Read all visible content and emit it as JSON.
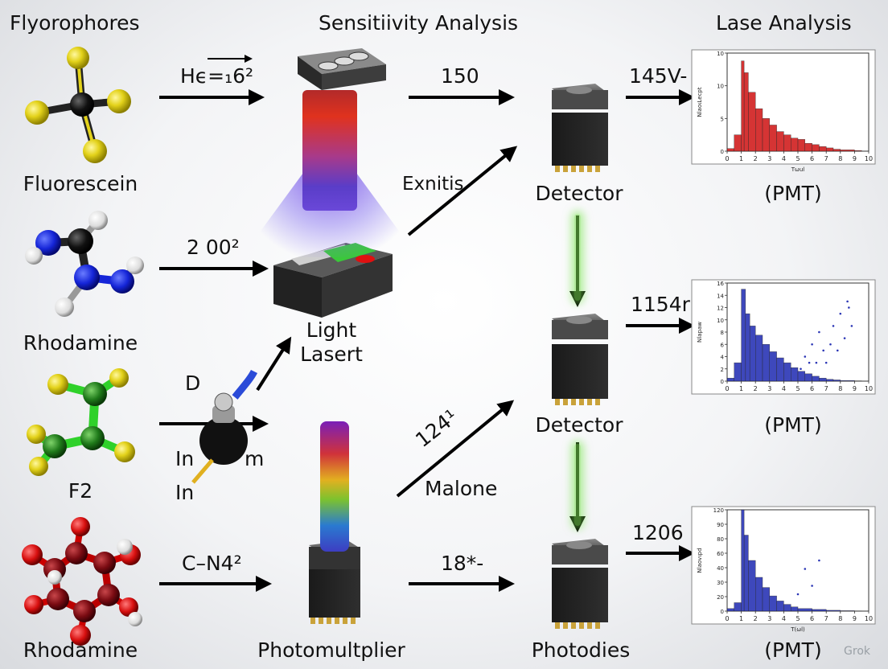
{
  "headers": {
    "left": "Flyorophores",
    "center": "Sensitiivity Analysis",
    "right": "Lase  Analysis"
  },
  "fluorophores": [
    {
      "label": "Fluorescein"
    },
    {
      "label": "Rhodamine"
    },
    {
      "label": "F2"
    },
    {
      "label": "Rhodamine"
    }
  ],
  "arrow_labels": {
    "row1": "Hϵ=₁6²",
    "row2": "2 00²",
    "row3_d": "D",
    "row3_in1": "In",
    "row3_m": "m",
    "row3_in2": "In",
    "row4": "C–N4²",
    "to_det1": "150",
    "exnitis": "Exnitis",
    "diag_124": "124¹",
    "malone": "Malone",
    "to_photodiode": "18*-",
    "out1": "145V-",
    "out2": "1154r",
    "out3": "1206"
  },
  "devices": {
    "laser": "Light\nLasert",
    "photomultiplier": "Photomultplier",
    "detector1": "Detector",
    "detector2": "Detector",
    "photodiode": "Photodies"
  },
  "plots": [
    {
      "caption": "(PMT)",
      "color": "#d11f1f",
      "xlabel": "Tωul",
      "ylabel": "NlaoιLecpt"
    },
    {
      "caption": "(PMT)",
      "color": "#2a35b5",
      "xlabel": "",
      "ylabel": "Nlapaw"
    },
    {
      "caption": "(PMT)",
      "color": "#2a35b5",
      "xlabel": "T(ωl)",
      "ylabel": "Nlaovιpd"
    }
  ],
  "watermark": "Grok",
  "chart_data": [
    {
      "type": "bar",
      "x": [
        0,
        0.5,
        1,
        1.2,
        1.5,
        2,
        2.5,
        3,
        3.5,
        4,
        4.5,
        5,
        5.5,
        6,
        6.5,
        7,
        7.5,
        8,
        9
      ],
      "values": [
        0.4,
        2.5,
        13.8,
        12,
        9,
        6.5,
        5,
        4,
        3,
        2.5,
        2,
        1.8,
        1.2,
        1,
        0.7,
        0.5,
        0.3,
        0.2,
        0.1
      ],
      "xlim": [
        0,
        10
      ],
      "ylim": [
        0,
        15
      ],
      "xticks": [
        "0",
        "1",
        "2",
        "3",
        "4",
        "5",
        "6",
        "7",
        "8",
        "9",
        "10"
      ],
      "yticks": [
        "0",
        "5",
        "10",
        "10"
      ]
    },
    {
      "type": "bar",
      "x": [
        0,
        0.5,
        1,
        1.3,
        1.6,
        2,
        2.5,
        3,
        3.5,
        4,
        4.5,
        5,
        5.5,
        6,
        6.5,
        7,
        7.5,
        8,
        9
      ],
      "values": [
        0.5,
        3,
        15,
        11,
        9,
        7.5,
        6,
        4.8,
        3.8,
        3,
        2.2,
        1.6,
        1.2,
        0.8,
        0.5,
        0.3,
        0.2,
        0.1,
        0.05
      ],
      "xlim": [
        0,
        10
      ],
      "ylim": [
        0,
        16
      ],
      "xticks": [
        "0",
        "1",
        "2",
        "3",
        "4",
        "5",
        "6",
        "7",
        "8",
        "9",
        "10"
      ],
      "yticks": [
        "0",
        "2",
        "4",
        "6",
        "8",
        "10",
        "12",
        "14",
        "16"
      ],
      "scatter": [
        [
          5.5,
          4
        ],
        [
          6,
          6
        ],
        [
          6.5,
          8
        ],
        [
          7,
          3
        ],
        [
          7.5,
          9
        ],
        [
          8,
          11
        ],
        [
          8.5,
          13
        ],
        [
          7.8,
          5
        ],
        [
          6.8,
          5
        ],
        [
          5.8,
          3
        ],
        [
          8.3,
          7
        ],
        [
          8.8,
          9
        ],
        [
          6.3,
          3
        ],
        [
          7.3,
          6
        ],
        [
          8.6,
          12
        ],
        [
          5.2,
          2
        ]
      ]
    },
    {
      "type": "bar",
      "x": [
        0,
        0.5,
        1,
        1.2,
        1.5,
        2,
        2.5,
        3,
        3.5,
        4,
        4.5,
        5,
        6,
        7,
        8,
        9
      ],
      "values": [
        3,
        10,
        120,
        90,
        60,
        40,
        28,
        18,
        12,
        8,
        5,
        3,
        2,
        1,
        0.5,
        0.2
      ],
      "xlim": [
        0,
        10
      ],
      "ylim": [
        0,
        120
      ],
      "xticks": [
        "0",
        "1",
        "2",
        "3",
        "4",
        "5",
        "6",
        "7",
        "8",
        "9",
        "10"
      ],
      "yticks": [
        "0",
        "20",
        "30",
        "40",
        "60",
        "80",
        "90",
        "120"
      ],
      "scatter": [
        [
          5.5,
          50
        ],
        [
          6.5,
          60
        ],
        [
          6,
          30
        ],
        [
          5,
          20
        ]
      ]
    }
  ]
}
